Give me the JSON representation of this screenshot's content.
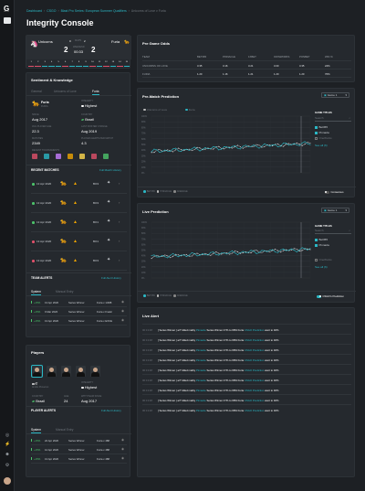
{
  "sidebar": {
    "logo": "G",
    "logo_sub": "GAMING"
  },
  "breadcrumb": [
    "Dashboard",
    "CSGO",
    "Blast Pro Series: European Summer Qualifiers",
    "Unicorns of Love v Furia"
  ],
  "page_title": "Integrity Console",
  "scoreboard": {
    "team1": "Unicorns",
    "team2": "Furia",
    "map_label": "MAPS",
    "maps_left": "0",
    "maps_right": "2",
    "score_left": "2",
    "score_right": "2",
    "time_label": "WEEKEND",
    "time": "00:33",
    "round_row": [
      "1",
      "2",
      "3",
      "4",
      "5",
      "6",
      "7",
      "8",
      "9",
      "10",
      "11",
      "12",
      "13",
      "14",
      "15"
    ]
  },
  "sentiment": {
    "title": "Sentiment & Knowledge",
    "tabs": [
      "General",
      "Unicorns of Love",
      "Furia"
    ],
    "team": "Furia",
    "team_country": "FURIA",
    "integrity_label": "INTEGRITY",
    "integrity_value": "Highest",
    "since_label": "SINCE",
    "since_value": "Aug 2017",
    "country_label": "COUNTRY",
    "country_value": "Brazil",
    "avg_label": "AVG PLAYER AGE",
    "avg_value": "22.3",
    "last_label": "LAST ROSTER CHANGE",
    "last_value": "Aug 2019",
    "matches_label": "MATCHES",
    "matches_value": "2349",
    "alerts_label": "PLAYER ALERTS PER MATCH",
    "alerts_value": "4.3",
    "tournaments_label": "RECENT TOURNAMENTS",
    "recent_matches_title": "RECENT MATCHES",
    "recent_matches_link": "Full Match History",
    "recent_matches": [
      {
        "date": "13 Apr 2020",
        "score": "BO3",
        "color": "#4cc36a"
      },
      {
        "date": "13 Apr 2020",
        "score": "BO3",
        "color": "#4cc36a"
      },
      {
        "date": "13 Apr 2020",
        "score": "BO1",
        "color": "#4cc36a"
      },
      {
        "date": "13 Apr 2020",
        "score": "BO1",
        "color": "#e0506a"
      },
      {
        "date": "13 Apr 2020",
        "score": "BO3",
        "color": "#e0506a"
      }
    ],
    "team_alerts_title": "TEAM ALERTS",
    "team_alerts_link": "Full Alert History",
    "alert_tabs": [
      "System",
      "Manual Entry"
    ],
    "team_alerts": [
      {
        "pct": "+15%",
        "date": "13 Apr 2020",
        "type": "Series Winner",
        "detail": "Furia x 1/488"
      },
      {
        "pct": "+15%",
        "date": "9 Mar 2020",
        "type": "Series Winner",
        "detail": "Furia x Fnatic"
      },
      {
        "pct": "+15%",
        "date": "13 Apr 2020",
        "type": "Series Winner",
        "detail": "Furia x EXCE"
      }
    ]
  },
  "players": {
    "title": "Players",
    "name": "arT",
    "full_name": "Andrei Piovezan",
    "integrity_label": "INTEGRITY",
    "integrity_value": "Highest",
    "country_label": "COUNTRY",
    "country_value": "Brazil",
    "age_label": "AGE",
    "age_value": "24",
    "since_label": "WITH TEAM SINCE",
    "since_value": "Aug 2017",
    "alerts_title": "PLAYER ALERTS",
    "alerts_link": "Full Alert History",
    "alert_tabs": [
      "System",
      "Manual Entry"
    ],
    "alerts": [
      {
        "pct": "+15%",
        "date": "22 Apr 2020",
        "type": "Series Winner",
        "detail": "Furia x 488"
      },
      {
        "pct": "+15%",
        "date": "12 Apr 2020",
        "type": "Series Winner",
        "detail": "Furia x 488"
      },
      {
        "pct": "+15%",
        "date": "13 Apr 2020",
        "type": "Series Winner",
        "detail": "Furia x 488"
      }
    ]
  },
  "odds": {
    "title": "Pre Game Odds",
    "columns": [
      "TEAM",
      "BET365",
      "PINNACLE",
      "1XBET",
      "OWNWORKS",
      "PONBET",
      "WIN %"
    ],
    "rows": [
      [
        "UNICORNS OF LOVE",
        "3.35",
        "3.16",
        "3.21",
        "3.00",
        "3.35",
        "24%"
      ],
      [
        "FURIA",
        "1.20",
        "1.16",
        "1.21",
        "1.20",
        "1.20",
        "76%"
      ]
    ]
  },
  "prematch": {
    "title": "Pre-Match Prediction",
    "dropdown": "Game 1",
    "legend": [
      "Unicorns of Love",
      "Furia"
    ],
    "game_titles": "GAME TITLES",
    "search": "Search",
    "sources": [
      "Bet365",
      "Pinnacle",
      "OneWorks"
    ],
    "see_all": "See all (6)",
    "foot": [
      "BET365",
      "PINNACLE",
      "AVERAGE"
    ],
    "toggle_label": "Consensus",
    "y_ticks": [
      "100%",
      "90%",
      "80%",
      "70%",
      "60%",
      "50%",
      "40%",
      "30%",
      "20%",
      "10%",
      "0%"
    ]
  },
  "live": {
    "title": "Live Prediction",
    "dropdown": "Game 1",
    "game_titles": "GAME TITLES",
    "search": "Search",
    "sources": [
      "Bet365",
      "Pinnacle",
      "OneWorks"
    ],
    "see_all": "See all (6)",
    "foot": [
      "BET365",
      "PINNACLE",
      "AVERAGE"
    ],
    "toggle_label": "CSGO's Prediction",
    "y_ticks": [
      "100%",
      "90%",
      "80%",
      "70%",
      "60%",
      "50%",
      "40%",
      "30%",
      "20%",
      "10%",
      "0%"
    ]
  },
  "live_alert": {
    "title": "Live Alert",
    "rows": [
      {
        "time": "00:13:48",
        "a": "[ Series Winner ]",
        "b": "arT killed mathy",
        "c": "Pinnacle",
        "d": "Series Winner 47% to 68% Furia",
        "e": "CSGO Prediction",
        "f": "went to 40%"
      },
      {
        "time": "00:13:48",
        "a": "[ Series Winner ]",
        "b": "arT killed mathy",
        "c": "Pinnacle",
        "d": "Series Winner 47% to 68% Furia",
        "e": "CSGO Prediction",
        "f": "went to 40%"
      },
      {
        "time": "00:13:48",
        "a": "[ Series Winner ]",
        "b": "arT killed mathy",
        "c": "Pinnacle",
        "d": "Series Winner 47% to 68% Furia",
        "e": "CSGO Prediction",
        "f": "went to 40%"
      },
      {
        "time": "00:13:48",
        "a": "[ Series Winner ]",
        "b": "arT killed mathy",
        "c": "Pinnacle",
        "d": "Series Winner 47% to 68% Furia",
        "e": "CSGO Prediction",
        "f": "went to 40%"
      },
      {
        "time": "00:13:48",
        "a": "[ Series Winner ]",
        "b": "arT killed mathy",
        "c": "Pinnacle",
        "d": "Series Winner 47% to 68% Furia",
        "e": "CSGO Prediction",
        "f": "went to 40%"
      },
      {
        "time": "00:13:48",
        "a": "[ Series Winner ]",
        "b": "arT killed mathy",
        "c": "Pinnacle",
        "d": "Series Winner 47% to 68% Furia",
        "e": "CSGO Prediction",
        "f": "went to 40%"
      },
      {
        "time": "00:13:48",
        "a": "[ Series Winner ]",
        "b": "arT killed mathy",
        "c": "Pinnacle",
        "d": "Series Winner 47% to 68% Furia",
        "e": "CSGO Prediction",
        "f": "went to 40%"
      },
      {
        "time": "00:13:48",
        "a": "[ Series Winner ]",
        "b": "arT killed mathy",
        "c": "Pinnacle",
        "d": "Series Winner 47% to 68% Furia",
        "e": "CSGO Prediction",
        "f": "went to 40%"
      },
      {
        "time": "00:13:48",
        "a": "[ Series Winner ]",
        "b": "arT killed mathy",
        "c": "Pinnacle",
        "d": "Series Winner 47% to 68% Furia",
        "e": "CSGO Prediction",
        "f": "went to 40%"
      }
    ]
  },
  "colors": {
    "accent": "#2bb7c4",
    "bg": "#1d2024",
    "card": "#25292e",
    "win": "#4cc36a",
    "loss": "#e0506a"
  }
}
